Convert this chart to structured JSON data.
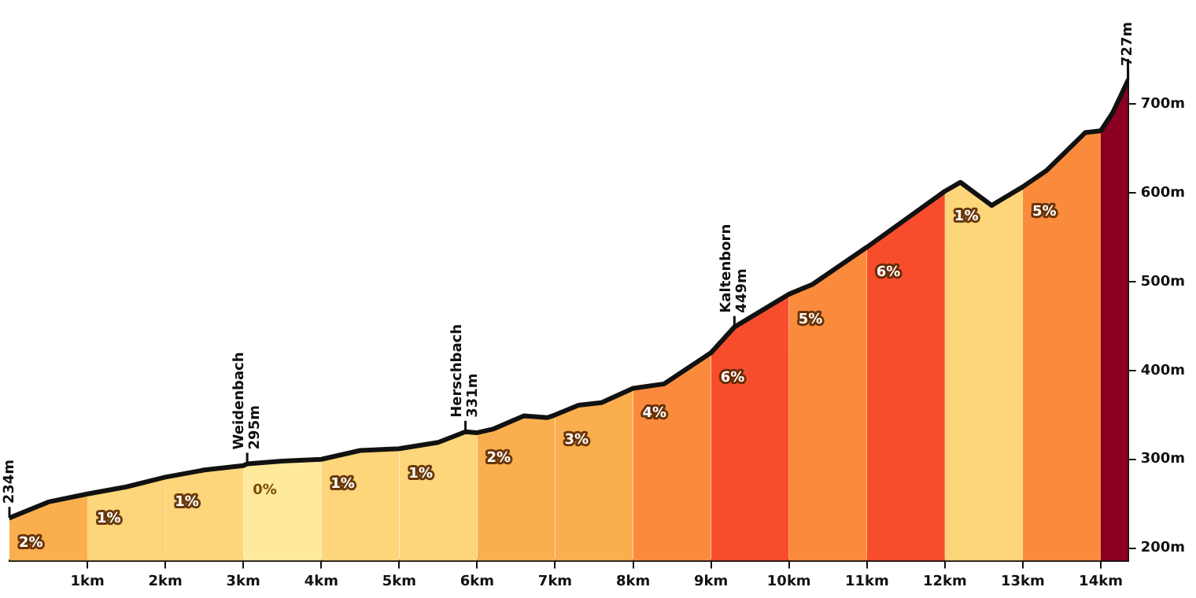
{
  "chart_data": {
    "type": "area",
    "xlim": [
      0,
      14.35
    ],
    "xticks": [
      {
        "value": 1,
        "label": "1km"
      },
      {
        "value": 2,
        "label": "2km"
      },
      {
        "value": 3,
        "label": "3km"
      },
      {
        "value": 4,
        "label": "4km"
      },
      {
        "value": 5,
        "label": "5km"
      },
      {
        "value": 6,
        "label": "6km"
      },
      {
        "value": 7,
        "label": "7km"
      },
      {
        "value": 8,
        "label": "8km"
      },
      {
        "value": 9,
        "label": "9km"
      },
      {
        "value": 10,
        "label": "10km"
      },
      {
        "value": 11,
        "label": "11km"
      },
      {
        "value": 12,
        "label": "12km"
      },
      {
        "value": 13,
        "label": "13km"
      },
      {
        "value": 14,
        "label": "14km"
      }
    ],
    "ylim": [
      186,
      750
    ],
    "yticks": [
      {
        "value": 200,
        "label": "200m"
      },
      {
        "value": 300,
        "label": "300m"
      },
      {
        "value": 400,
        "label": "400m"
      },
      {
        "value": 500,
        "label": "500m"
      },
      {
        "value": 600,
        "label": "600m"
      },
      {
        "value": 700,
        "label": "700m"
      }
    ],
    "grid": false,
    "legend": false,
    "series": [
      {
        "color": "#fbae4e",
        "x": [
          0,
          0.5,
          1
        ],
        "values": [
          234,
          252,
          261
        ]
      },
      {
        "color": "#fdd57a",
        "x": [
          1,
          1.5,
          2
        ],
        "values": [
          261,
          269,
          280
        ]
      },
      {
        "color": "#fdd57a",
        "x": [
          2,
          2.5,
          3
        ],
        "values": [
          280,
          288,
          293
        ]
      },
      {
        "color": "#ffe99c",
        "x": [
          3,
          3.05,
          3.5,
          4
        ],
        "values": [
          293,
          295,
          298,
          300
        ]
      },
      {
        "color": "#fdd57a",
        "x": [
          4,
          4.5,
          5
        ],
        "values": [
          300,
          310,
          312
        ]
      },
      {
        "color": "#fdd57a",
        "x": [
          5,
          5.5,
          5.85,
          6
        ],
        "values": [
          312,
          319,
          331,
          330
        ]
      },
      {
        "color": "#fbae4e",
        "x": [
          6,
          6.2,
          6.6,
          6.9,
          7
        ],
        "values": [
          330,
          334,
          349,
          347,
          350
        ]
      },
      {
        "color": "#fbae4e",
        "x": [
          7,
          7.3,
          7.6,
          8
        ],
        "values": [
          350,
          361,
          364,
          380
        ]
      },
      {
        "color": "#fb8b3c",
        "x": [
          8,
          8.4,
          9
        ],
        "values": [
          380,
          385,
          420
        ]
      },
      {
        "color": "#f84d2c",
        "x": [
          9,
          9.3,
          10
        ],
        "values": [
          420,
          449,
          486
        ]
      },
      {
        "color": "#fb8b3c",
        "x": [
          10,
          10.3,
          11
        ],
        "values": [
          486,
          497,
          539
        ]
      },
      {
        "color": "#f84d2c",
        "x": [
          11,
          12
        ],
        "values": [
          539,
          602
        ]
      },
      {
        "color": "#fdd57a",
        "x": [
          12,
          12.2,
          12.6,
          13
        ],
        "values": [
          602,
          612,
          586,
          607
        ]
      },
      {
        "color": "#fb8b3c",
        "x": [
          13,
          13.3,
          13.8,
          14
        ],
        "values": [
          607,
          625,
          668,
          670
        ]
      },
      {
        "color": "#8b0020",
        "x": [
          14,
          14.15,
          14.35
        ],
        "values": [
          670,
          690,
          727
        ]
      },
      {
        "type": "line",
        "color": "#111111",
        "x": [
          0,
          0.5,
          1,
          1.5,
          2,
          2.5,
          3,
          3.05,
          3.5,
          4,
          4.5,
          5,
          5.5,
          5.85,
          6,
          6.2,
          6.6,
          6.9,
          7,
          7.3,
          7.6,
          8,
          8.4,
          9,
          9.3,
          10,
          10.3,
          11,
          12,
          12.2,
          12.6,
          13,
          13.3,
          13.8,
          14,
          14.15,
          14.35
        ],
        "values": [
          234,
          252,
          261,
          269,
          280,
          288,
          293,
          295,
          298,
          300,
          310,
          312,
          319,
          331,
          330,
          334,
          349,
          347,
          350,
          361,
          364,
          380,
          385,
          420,
          449,
          486,
          497,
          539,
          602,
          612,
          586,
          607,
          625,
          668,
          670,
          690,
          727
        ]
      }
    ],
    "annotations": [
      "2%",
      "1%",
      "1%",
      "0%",
      "1%",
      "1%",
      "2%",
      "3%",
      "4%",
      "6%",
      "5%",
      "6%",
      "1%",
      "5%",
      {
        "text": "234m",
        "x": 0,
        "y": 234
      },
      {
        "text": "Weidenbach 295m",
        "x": 3.05,
        "y": 295
      },
      {
        "text": "Herschbach 331m",
        "x": 5.85,
        "y": 331
      },
      {
        "text": "Kaltenborn 449m",
        "x": 9.3,
        "y": 449
      },
      {
        "text": "727m",
        "x": 14.35,
        "y": 727
      }
    ]
  }
}
